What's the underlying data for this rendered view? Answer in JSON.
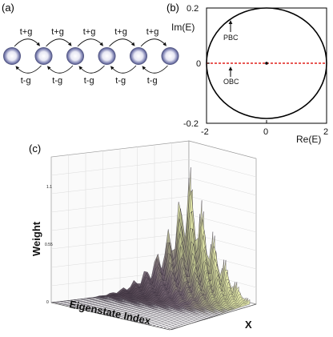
{
  "panels": {
    "a": {
      "label": "(a)",
      "hop_right": "t+g",
      "hop_left": "t-g",
      "sites": 6
    },
    "b": {
      "label": "(b)",
      "ylabel": "Im(E)",
      "xlabel": "Re(E)",
      "xticks": [
        "-2",
        "0",
        "2"
      ],
      "yticks": [
        "0.2",
        "0",
        "-0.2"
      ],
      "annotations": {
        "pbc": "PBC",
        "obc": "OBC"
      },
      "colors": {
        "circle": "#000000",
        "obc_line": "#e0201c"
      }
    },
    "c": {
      "label": "(c)",
      "ylabel": "Weight",
      "xlabel": "Eigenstate Index",
      "zlabel": "X",
      "ztick_labels": [
        "1.1",
        "0.55",
        "0"
      ],
      "colors": {
        "ridge_top": "#e8f0a0",
        "ridge_mid": "#9a9a7a",
        "ridge_base": "#5a4a5a"
      }
    }
  },
  "chart_data": [
    {
      "type": "scatter",
      "xlabel": "Re(E)",
      "ylabel": "Im(E)",
      "xlim": [
        -2,
        2
      ],
      "ylim": [
        -0.2,
        0.2
      ],
      "series": [
        {
          "name": "PBC",
          "shape": "ellipse",
          "center": [
            0,
            0
          ],
          "radii": [
            2,
            0.2
          ]
        },
        {
          "name": "OBC",
          "x": [
            -2,
            2
          ],
          "y": [
            0,
            0
          ]
        }
      ]
    },
    {
      "type": "area",
      "xlabel": "Eigenstate Index",
      "ylabel": "Weight",
      "zlabel": "X",
      "zlim": [
        0,
        1.1
      ]
    }
  ]
}
